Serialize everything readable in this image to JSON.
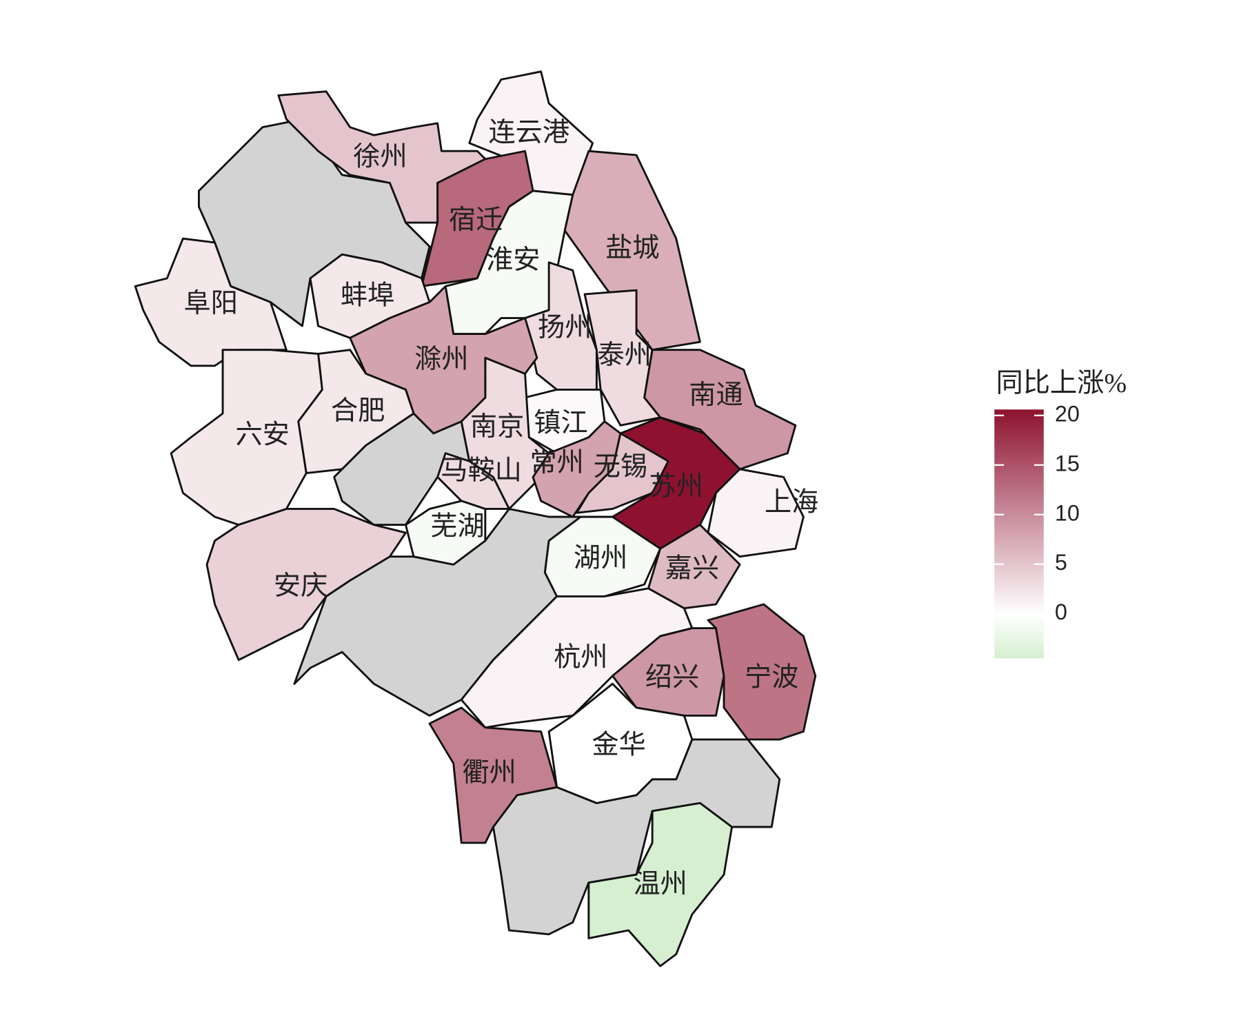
{
  "map": {
    "type": "choropleth",
    "regions": [
      {
        "name": "连云港",
        "value": 1
      },
      {
        "name": "徐州",
        "value": 5
      },
      {
        "name": "宿迁",
        "value": 13
      },
      {
        "name": "淮安",
        "value": -1
      },
      {
        "name": "盐城",
        "value": 7
      },
      {
        "name": "扬州",
        "value": 3
      },
      {
        "name": "泰州",
        "value": 3
      },
      {
        "name": "南通",
        "value": 9
      },
      {
        "name": "镇江",
        "value": 0.5
      },
      {
        "name": "南京",
        "value": 3
      },
      {
        "name": "马鞍山",
        "value": 3
      },
      {
        "name": "常州",
        "value": 8
      },
      {
        "name": "无锡",
        "value": 5
      },
      {
        "name": "苏州",
        "value": 20.6
      },
      {
        "name": "上海",
        "value": 1
      },
      {
        "name": "芜湖",
        "value": -1
      },
      {
        "name": "湖州",
        "value": -1
      },
      {
        "name": "嘉兴",
        "value": 6
      },
      {
        "name": "杭州",
        "value": 1
      },
      {
        "name": "绍兴",
        "value": 9
      },
      {
        "name": "宁波",
        "value": 12
      },
      {
        "name": "金华",
        "value": 0
      },
      {
        "name": "衢州",
        "value": 11
      },
      {
        "name": "温州",
        "value": -4.5
      },
      {
        "name": "阜阳",
        "value": 2
      },
      {
        "name": "蚌埠",
        "value": 2
      },
      {
        "name": "滁州",
        "value": 8
      },
      {
        "name": "合肥",
        "value": 2
      },
      {
        "name": "六安",
        "value": 2
      },
      {
        "name": "安庆",
        "value": 4
      }
    ],
    "legend": {
      "title": "同比上涨%",
      "ticks": [
        0,
        5,
        10,
        15,
        20
      ],
      "colors": {
        "low": "#d5efd0",
        "mid": "#ffffff",
        "high": "#8e1230"
      }
    }
  }
}
